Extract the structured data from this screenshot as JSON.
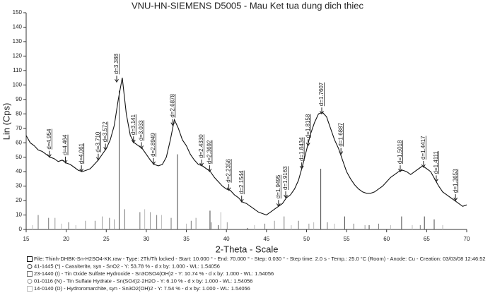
{
  "chart_data": {
    "type": "line",
    "title": "VNU-HN-SIEMENS D5005 - Mau Ket tua dung dich thiec",
    "xlabel": "2-Theta - Scale",
    "ylabel": "Lin (Cps)",
    "xlim": [
      15,
      70
    ],
    "ylim": [
      0,
      150
    ],
    "xticks": [
      15,
      20,
      25,
      30,
      35,
      40,
      45,
      50,
      55,
      60,
      65,
      70
    ],
    "yticks": [
      0,
      10,
      20,
      30,
      40,
      50,
      60,
      70,
      80,
      90,
      100,
      110,
      120,
      130,
      140,
      150
    ],
    "x": [
      15,
      15.5,
      16,
      16.5,
      17,
      17.5,
      18,
      18.5,
      19,
      19.5,
      20,
      20.5,
      21,
      21.5,
      22,
      22.5,
      23,
      23.5,
      24,
      24.5,
      25,
      25.5,
      26,
      26.5,
      27,
      27.5,
      28,
      28.5,
      29,
      29.5,
      30,
      30.5,
      31,
      31.5,
      32,
      32.5,
      33,
      33.5,
      34,
      34.5,
      35,
      35.5,
      36,
      36.5,
      37,
      37.5,
      38,
      38.5,
      39,
      39.5,
      40,
      40.5,
      41,
      41.5,
      42,
      42.5,
      43,
      43.5,
      44,
      44.5,
      45,
      45.5,
      46,
      46.5,
      47,
      47.5,
      48,
      48.5,
      49,
      49.5,
      50,
      50.5,
      51,
      51.5,
      52,
      52.5,
      53,
      53.5,
      54,
      54.5,
      55,
      55.5,
      56,
      56.5,
      57,
      57.5,
      58,
      58.5,
      59,
      59.5,
      60,
      60.5,
      61,
      61.5,
      62,
      62.5,
      63,
      63.5,
      64,
      64.5,
      65,
      65.5,
      66,
      66.5,
      67,
      67.5,
      68,
      68.5,
      69,
      69.5,
      70
    ],
    "series": [
      {
        "name": "File: Thinh-DHBK-Sn-H2SO4-KK.raw - Type: 2Th/Th locked - Start: 10.000 ° - End: 70.000 ° - Step: 0.030 ° - Step time: 2.0 s - Temp.: 25.0 °C (Room) - Anode: Cu - Creation: 03/03/08 12:46:52",
        "color": "#111111",
        "values": [
          65,
          60,
          58,
          55,
          54,
          52,
          50,
          49,
          47,
          48,
          46,
          45,
          43,
          41,
          40,
          41,
          42,
          45,
          48,
          52,
          56,
          62,
          72,
          90,
          105,
          80,
          65,
          60,
          58,
          56,
          52,
          48,
          45,
          44,
          45,
          50,
          62,
          76,
          70,
          62,
          58,
          52,
          48,
          45,
          44,
          42,
          40,
          36,
          33,
          30,
          28,
          27,
          24,
          22,
          19,
          18,
          16,
          14,
          12,
          11,
          10,
          12,
          14,
          16,
          18,
          22,
          24,
          28,
          34,
          44,
          55,
          66,
          74,
          80,
          81,
          78,
          70,
          62,
          56,
          48,
          40,
          35,
          31,
          28,
          26,
          25,
          25,
          26,
          28,
          30,
          33,
          36,
          38,
          40,
          41,
          40,
          38,
          40,
          42,
          44,
          42,
          40,
          35,
          30,
          26,
          24,
          22,
          20,
          18,
          16,
          17
        ]
      }
    ],
    "annotations": [
      {
        "x": 17.9,
        "y": 50,
        "label": "d=4.954"
      },
      {
        "x": 19.9,
        "y": 46,
        "label": "d=4.464"
      },
      {
        "x": 21.9,
        "y": 40,
        "label": "d=4.061"
      },
      {
        "x": 24.0,
        "y": 48,
        "label": "d=3.710"
      },
      {
        "x": 24.9,
        "y": 55,
        "label": "d=3.572"
      },
      {
        "x": 26.3,
        "y": 102,
        "label": "d=3.388"
      },
      {
        "x": 28.4,
        "y": 60,
        "label": "d=3.141"
      },
      {
        "x": 29.4,
        "y": 56,
        "label": "d=3.033"
      },
      {
        "x": 30.9,
        "y": 45,
        "label": "d=2.8949"
      },
      {
        "x": 33.3,
        "y": 72,
        "label": "d=2.6878"
      },
      {
        "x": 36.9,
        "y": 44,
        "label": "d=2.4330"
      },
      {
        "x": 37.9,
        "y": 40,
        "label": "d=2.3692"
      },
      {
        "x": 40.3,
        "y": 27,
        "label": "d=2.2356"
      },
      {
        "x": 41.9,
        "y": 19,
        "label": "d=2.1544"
      },
      {
        "x": 46.5,
        "y": 16,
        "label": "d=1.9495"
      },
      {
        "x": 47.4,
        "y": 22,
        "label": "d=1.9163"
      },
      {
        "x": 49.4,
        "y": 42,
        "label": "d=1.8434"
      },
      {
        "x": 50.2,
        "y": 58,
        "label": "d=1.8158"
      },
      {
        "x": 51.9,
        "y": 80,
        "label": "d=1.7607"
      },
      {
        "x": 54.3,
        "y": 52,
        "label": "d=1.6887"
      },
      {
        "x": 61.7,
        "y": 40,
        "label": "d=1.5018"
      },
      {
        "x": 64.6,
        "y": 43,
        "label": "d=1.4417"
      },
      {
        "x": 66.2,
        "y": 33,
        "label": "d=1.4111"
      },
      {
        "x": 68.6,
        "y": 20,
        "label": "d=1.3653"
      }
    ],
    "reference_patterns": [
      {
        "name": "41-1445 (*) - Cassiterite, syn - SnO2 - Y: 53.78 % - d x by: 1.000 - WL: 1.54056",
        "color": "#444444",
        "x": [
          26.61,
          33.89,
          37.95,
          38.97,
          42.64,
          51.78,
          54.76,
          57.82,
          61.87,
          64.72,
          65.94
        ],
        "values": [
          96,
          52,
          13,
          3,
          1,
          42,
          9,
          3,
          9,
          9,
          7
        ]
      },
      {
        "name": "23-1440 (I) - Tin Oxide Sulfate Hydroxide - Sn3OSO4(OH)2 - Y: 10.74 % - d x by: 1.000 - WL: 1.54056",
        "color": "#777777",
        "x": [
          16.5,
          17.8,
          20.3,
          23.6,
          25.4,
          27.3,
          29.2,
          31.3,
          33.1,
          35.6,
          38.1,
          44.8,
          47.2,
          49.0,
          52.6,
          55.9,
          59.0,
          64.2
        ],
        "values": [
          10,
          8,
          5,
          6,
          8,
          14,
          12,
          10,
          8,
          6,
          5,
          4,
          9,
          6,
          5,
          4,
          4,
          3
        ]
      },
      {
        "name": "01-0116 (N) - Tin Sulfate Hydrate - Sn(SO4)2·2H2O - Y: 6.10 % - d x by: 1.000 - WL: 1.54056",
        "color": "#999999",
        "x": [
          18.6,
          22.4,
          24.5,
          26.0,
          30.5,
          36.2,
          40.1,
          46.0,
          50.3,
          57.3
        ],
        "values": [
          8,
          6,
          9,
          7,
          12,
          8,
          5,
          6,
          4,
          3
        ]
      },
      {
        "name": "14-0140 (D) - Hydroromarchite, syn - Sn3O2(OH)2 - Y: 7.54 % - d x by: 1.000 - WL: 1.54056",
        "color": "#bbbbbb",
        "x": [
          15.8,
          19.4,
          21.2,
          29.8,
          31.9,
          35.0,
          39.3,
          43.5,
          48.1,
          50.9,
          53.5,
          60.5,
          63.2,
          67.0
        ],
        "values": [
          3,
          4,
          3,
          14,
          10,
          4,
          12,
          3,
          3,
          5,
          4,
          3,
          3,
          3
        ]
      }
    ]
  }
}
